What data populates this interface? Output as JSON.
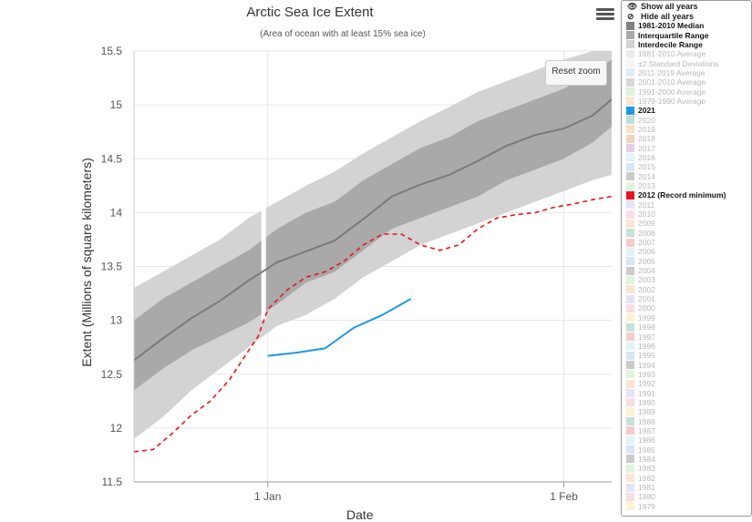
{
  "title": "Arctic Sea Ice Extent",
  "subtitle": "(Area of ocean with at least 15% sea ice)",
  "reset_zoom": "Reset zoom",
  "menu_icon": "hamburger-menu-icon",
  "legend": {
    "show_all": "Show all years",
    "hide_all": "Hide all years",
    "items": [
      {
        "label": "1981-2010 Median",
        "color": "#808080",
        "on": true
      },
      {
        "label": "Interquartile Range",
        "color": "#a9a9a9",
        "on": true
      },
      {
        "label": "Interdecile Range",
        "color": "#d3d3d3",
        "on": true
      },
      {
        "label": "1981-2010 Average",
        "color": "#d3d3d3",
        "on": false
      },
      {
        "label": "±2 Standard Deviations",
        "color": "#e8e8e8",
        "on": false
      },
      {
        "label": "2011-2019 Average",
        "color": "#b7d7f1",
        "on": false
      },
      {
        "label": "2001-2010 Average",
        "color": "#a9a9a9",
        "on": false
      },
      {
        "label": "1991-2000 Average",
        "color": "#b6e3b0",
        "on": false
      },
      {
        "label": "1979-1990 Average",
        "color": "#f7c6a0",
        "on": false
      },
      {
        "label": "2021",
        "color": "#1f98e0",
        "on": true
      },
      {
        "label": "2020",
        "color": "#6fb6b0",
        "on": false
      },
      {
        "label": "2019",
        "color": "#f2b87e",
        "on": false
      },
      {
        "label": "2018",
        "color": "#d5a070",
        "on": false
      },
      {
        "label": "2017",
        "color": "#c98fc9",
        "on": false
      },
      {
        "label": "2016",
        "color": "#bfe6ee",
        "on": false
      },
      {
        "label": "2015",
        "color": "#a7c7e7",
        "on": false
      },
      {
        "label": "2014",
        "color": "#8a8a8a",
        "on": false
      },
      {
        "label": "2013",
        "color": "#b9e6b0",
        "on": false
      },
      {
        "label": "2012 (Record minimum)",
        "color": "#e8141c",
        "on": true
      },
      {
        "label": "2011",
        "color": "#c9c3ea",
        "on": false
      },
      {
        "label": "2010",
        "color": "#f0b5c5",
        "on": false
      },
      {
        "label": "2009",
        "color": "#f7c59f",
        "on": false
      },
      {
        "label": "2008",
        "color": "#7fbfa6",
        "on": false
      },
      {
        "label": "2007",
        "color": "#f08a8a",
        "on": false
      },
      {
        "label": "2006",
        "color": "#bfe2ea",
        "on": false
      },
      {
        "label": "2005",
        "color": "#a9c8ec",
        "on": false
      },
      {
        "label": "2004",
        "color": "#8c8c8c",
        "on": false
      },
      {
        "label": "2003",
        "color": "#bfe6b5",
        "on": false
      },
      {
        "label": "2002",
        "color": "#f5c79c",
        "on": false
      },
      {
        "label": "2001",
        "color": "#c6c0ea",
        "on": false
      },
      {
        "label": "2000",
        "color": "#f2b6c6",
        "on": false
      },
      {
        "label": "1999",
        "color": "#f7e29c",
        "on": false
      },
      {
        "label": "1998",
        "color": "#7fbfa6",
        "on": false
      },
      {
        "label": "1997",
        "color": "#f08a8a",
        "on": false
      },
      {
        "label": "1996",
        "color": "#bfe6ee",
        "on": false
      },
      {
        "label": "1995",
        "color": "#a9c8ec",
        "on": false
      },
      {
        "label": "1994",
        "color": "#8c8c8c",
        "on": false
      },
      {
        "label": "1993",
        "color": "#bfe6b5",
        "on": false
      },
      {
        "label": "1992",
        "color": "#f5c79c",
        "on": false
      },
      {
        "label": "1991",
        "color": "#c6c0ea",
        "on": false
      },
      {
        "label": "1990",
        "color": "#f2b6c6",
        "on": false
      },
      {
        "label": "1989",
        "color": "#f7e29c",
        "on": false
      },
      {
        "label": "1988",
        "color": "#7fbfa6",
        "on": false
      },
      {
        "label": "1987",
        "color": "#f08a8a",
        "on": false
      },
      {
        "label": "1986",
        "color": "#bfe6ee",
        "on": false
      },
      {
        "label": "1985",
        "color": "#a9c8ec",
        "on": false
      },
      {
        "label": "1984",
        "color": "#8c8c8c",
        "on": false
      },
      {
        "label": "1983",
        "color": "#bfe6b5",
        "on": false
      },
      {
        "label": "1982",
        "color": "#f5c79c",
        "on": false
      },
      {
        "label": "1981",
        "color": "#c6c0ea",
        "on": false
      },
      {
        "label": "1980",
        "color": "#f2b6c6",
        "on": false
      },
      {
        "label": "1979",
        "color": "#f7e29c",
        "on": false
      }
    ]
  },
  "chart_data": {
    "type": "line",
    "title": "Arctic Sea Ice Extent",
    "subtitle": "(Area of ocean with at least 15% sea ice)",
    "xlabel": "Date",
    "ylabel": "Extent (Millions of square kilometers)",
    "ylim": [
      11.5,
      15.5
    ],
    "yticks": [
      11.5,
      12,
      12.5,
      13,
      13.5,
      14,
      14.5,
      15,
      15.5
    ],
    "xlim": [
      "Dec 18",
      "Feb 6"
    ],
    "xticks": [
      {
        "label": "1 Jan",
        "date": "Jan 1"
      },
      {
        "label": "1 Feb",
        "date": "Feb 1"
      }
    ],
    "grid": true,
    "legend_position": "right",
    "series": [
      {
        "name": "1981-2010 Median",
        "style": "solid",
        "color": "#7a7a7a",
        "points": [
          [
            "Dec 18",
            12.63
          ],
          [
            "Dec 21",
            12.83
          ],
          [
            "Dec 24",
            13.02
          ],
          [
            "Dec 27",
            13.18
          ],
          [
            "Dec 30",
            13.37
          ],
          [
            "Jan 2",
            13.54
          ],
          [
            "Jan 5",
            13.64
          ],
          [
            "Jan 8",
            13.74
          ],
          [
            "Jan 11",
            13.94
          ],
          [
            "Jan 14",
            14.15
          ],
          [
            "Jan 17",
            14.26
          ],
          [
            "Jan 20",
            14.35
          ],
          [
            "Jan 23",
            14.48
          ],
          [
            "Jan 26",
            14.62
          ],
          [
            "Jan 29",
            14.72
          ],
          [
            "Feb 1",
            14.78
          ],
          [
            "Feb 4",
            14.9
          ],
          [
            "Feb 6",
            15.05
          ]
        ]
      },
      {
        "name": "Interquartile Range",
        "style": "band",
        "color": "#a9a9a9",
        "upper": [
          [
            "Dec 18",
            13.0
          ],
          [
            "Dec 21",
            13.2
          ],
          [
            "Dec 24",
            13.35
          ],
          [
            "Dec 27",
            13.5
          ],
          [
            "Dec 30",
            13.65
          ],
          [
            "Jan 2",
            13.85
          ],
          [
            "Jan 5",
            14.0
          ],
          [
            "Jan 8",
            14.1
          ],
          [
            "Jan 11",
            14.3
          ],
          [
            "Jan 14",
            14.45
          ],
          [
            "Jan 17",
            14.6
          ],
          [
            "Jan 20",
            14.7
          ],
          [
            "Jan 23",
            14.85
          ],
          [
            "Jan 26",
            14.95
          ],
          [
            "Jan 29",
            15.05
          ],
          [
            "Feb 1",
            15.15
          ],
          [
            "Feb 4",
            15.3
          ],
          [
            "Feb 6",
            15.42
          ]
        ],
        "lower": [
          [
            "Dec 18",
            12.35
          ],
          [
            "Dec 21",
            12.55
          ],
          [
            "Dec 24",
            12.72
          ],
          [
            "Dec 27",
            12.85
          ],
          [
            "Dec 30",
            12.98
          ],
          [
            "Jan 2",
            13.15
          ],
          [
            "Jan 5",
            13.35
          ],
          [
            "Jan 8",
            13.45
          ],
          [
            "Jan 11",
            13.65
          ],
          [
            "Jan 14",
            13.85
          ],
          [
            "Jan 17",
            13.95
          ],
          [
            "Jan 20",
            14.05
          ],
          [
            "Jan 23",
            14.15
          ],
          [
            "Jan 26",
            14.3
          ],
          [
            "Jan 29",
            14.4
          ],
          [
            "Feb 1",
            14.5
          ],
          [
            "Feb 4",
            14.65
          ],
          [
            "Feb 6",
            14.8
          ]
        ]
      },
      {
        "name": "Interdecile Range",
        "style": "band",
        "color": "#d3d3d3",
        "upper": [
          [
            "Dec 18",
            13.3
          ],
          [
            "Dec 21",
            13.45
          ],
          [
            "Dec 24",
            13.6
          ],
          [
            "Dec 27",
            13.75
          ],
          [
            "Dec 30",
            13.95
          ],
          [
            "Jan 2",
            14.1
          ],
          [
            "Jan 5",
            14.25
          ],
          [
            "Jan 8",
            14.38
          ],
          [
            "Jan 11",
            14.55
          ],
          [
            "Jan 14",
            14.7
          ],
          [
            "Jan 17",
            14.85
          ],
          [
            "Jan 20",
            14.98
          ],
          [
            "Jan 23",
            15.12
          ],
          [
            "Jan 26",
            15.22
          ],
          [
            "Jan 29",
            15.32
          ],
          [
            "Feb 1",
            15.42
          ],
          [
            "Feb 4",
            15.5
          ],
          [
            "Feb 6",
            15.5
          ]
        ],
        "lower": [
          [
            "Dec 18",
            11.9
          ],
          [
            "Dec 21",
            12.1
          ],
          [
            "Dec 24",
            12.35
          ],
          [
            "Dec 27",
            12.55
          ],
          [
            "Dec 30",
            12.75
          ],
          [
            "Jan 2",
            12.95
          ],
          [
            "Jan 5",
            13.05
          ],
          [
            "Jan 8",
            13.2
          ],
          [
            "Jan 11",
            13.4
          ],
          [
            "Jan 14",
            13.55
          ],
          [
            "Jan 17",
            13.7
          ],
          [
            "Jan 20",
            13.8
          ],
          [
            "Jan 23",
            13.9
          ],
          [
            "Jan 26",
            14.0
          ],
          [
            "Jan 29",
            14.1
          ],
          [
            "Feb 1",
            14.2
          ],
          [
            "Feb 4",
            14.3
          ],
          [
            "Feb 6",
            14.35
          ]
        ]
      },
      {
        "name": "2021",
        "style": "solid",
        "color": "#1f98e0",
        "points": [
          [
            "Jan 1",
            12.67
          ],
          [
            "Jan 4",
            12.7
          ],
          [
            "Jan 7",
            12.74
          ],
          [
            "Jan 10",
            12.93
          ],
          [
            "Jan 13",
            13.05
          ],
          [
            "Jan 16",
            13.2
          ]
        ]
      },
      {
        "name": "2012 (Record minimum)",
        "style": "dashed",
        "color": "#e8141c",
        "points": [
          [
            "Dec 18",
            11.78
          ],
          [
            "Dec 20",
            11.8
          ],
          [
            "Dec 22",
            11.95
          ],
          [
            "Dec 24",
            12.12
          ],
          [
            "Dec 26",
            12.25
          ],
          [
            "Dec 28",
            12.45
          ],
          [
            "Dec 30",
            12.72
          ],
          [
            "Dec 31",
            12.85
          ],
          [
            "Jan 1",
            13.1
          ],
          [
            "Jan 3",
            13.28
          ],
          [
            "Jan 5",
            13.4
          ],
          [
            "Jan 7",
            13.45
          ],
          [
            "Jan 9",
            13.55
          ],
          [
            "Jan 11",
            13.7
          ],
          [
            "Jan 13",
            13.8
          ],
          [
            "Jan 15",
            13.8
          ],
          [
            "Jan 17",
            13.7
          ],
          [
            "Jan 19",
            13.65
          ],
          [
            "Jan 21",
            13.7
          ],
          [
            "Jan 23",
            13.85
          ],
          [
            "Jan 25",
            13.95
          ],
          [
            "Jan 27",
            13.98
          ],
          [
            "Jan 29",
            14.0
          ],
          [
            "Jan 31",
            14.05
          ],
          [
            "Feb 2",
            14.08
          ],
          [
            "Feb 4",
            14.12
          ],
          [
            "Feb 6",
            14.15
          ]
        ]
      }
    ]
  }
}
